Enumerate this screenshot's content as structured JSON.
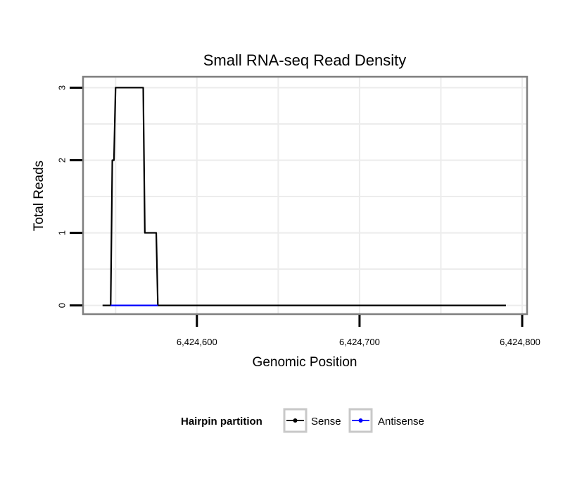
{
  "chart_data": {
    "type": "line",
    "title": "Small RNA-seq Read Density",
    "xlabel": "Genomic Position",
    "ylabel": "Total Reads",
    "xlim": [
      6424530,
      6424803
    ],
    "ylim": [
      -0.12,
      3.15
    ],
    "x_ticks": [
      6424600,
      6424700,
      6424800
    ],
    "x_tick_labels": [
      "6,424,600",
      "6,424,700",
      "6,424,800"
    ],
    "y_ticks": [
      0,
      1,
      2,
      3
    ],
    "y_tick_labels": [
      "0",
      "1",
      "2",
      "3"
    ],
    "series": [
      {
        "name": "Sense",
        "color": "#000000",
        "points": [
          [
            6424542,
            0
          ],
          [
            6424547,
            0
          ],
          [
            6424548,
            2
          ],
          [
            6424549,
            2
          ],
          [
            6424550,
            3
          ],
          [
            6424567,
            3
          ],
          [
            6424568,
            1
          ],
          [
            6424575,
            1
          ],
          [
            6424576,
            0
          ],
          [
            6424790,
            0
          ]
        ]
      },
      {
        "name": "Antisense",
        "color": "#0000ff",
        "points": [
          [
            6424547,
            0
          ],
          [
            6424576,
            0
          ]
        ]
      }
    ],
    "legend": {
      "title": "Hairpin partition",
      "position": "bottom",
      "entries": [
        "Sense",
        "Antisense"
      ]
    }
  }
}
